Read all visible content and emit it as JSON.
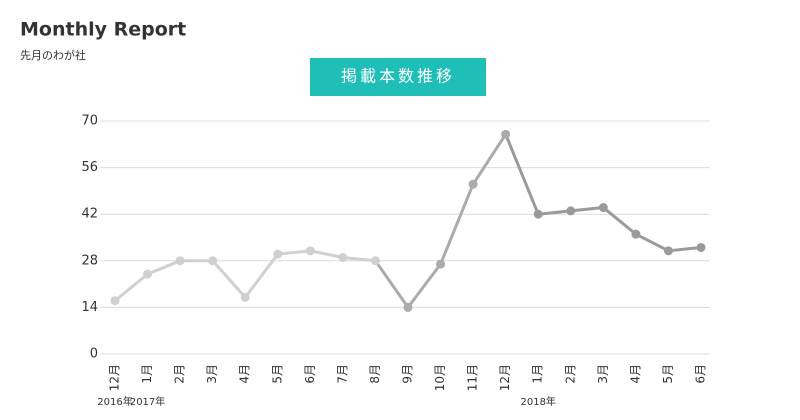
{
  "chart_data": {
    "type": "line",
    "title": "Monthly Report",
    "subtitle": "先月のわが社",
    "badge": "掲載本数推移",
    "categories": [
      "12月",
      "1月",
      "2月",
      "3月",
      "4月",
      "5月",
      "6月",
      "7月",
      "8月",
      "9月",
      "10月",
      "11月",
      "12月",
      "1月",
      "2月",
      "3月",
      "4月",
      "5月",
      "6月"
    ],
    "year_labels": [
      "2016年",
      "2017年",
      null,
      null,
      null,
      null,
      null,
      null,
      null,
      null,
      null,
      null,
      null,
      "2018年",
      null,
      null,
      null,
      null,
      null
    ],
    "values": [
      16,
      24,
      28,
      28,
      17,
      30,
      31,
      29,
      28,
      14,
      27,
      51,
      66,
      42,
      43,
      44,
      36,
      31,
      32
    ],
    "point_colors": [
      "#d0d0d0",
      "#d0d0d0",
      "#d0d0d0",
      "#d0d0d0",
      "#d0d0d0",
      "#d0d0d0",
      "#d0d0d0",
      "#d0d0d0",
      "#d0d0d0",
      "#ababab",
      "#ababab",
      "#ababab",
      "#ababab",
      "#9a9a9a",
      "#9a9a9a",
      "#9a9a9a",
      "#9a9a9a",
      "#9a9a9a",
      "#9a9a9a"
    ],
    "badge_color": "#1fbfb8",
    "ylim": [
      0,
      70
    ],
    "yticks": [
      0,
      14,
      28,
      42,
      56,
      70
    ],
    "grid": true
  }
}
